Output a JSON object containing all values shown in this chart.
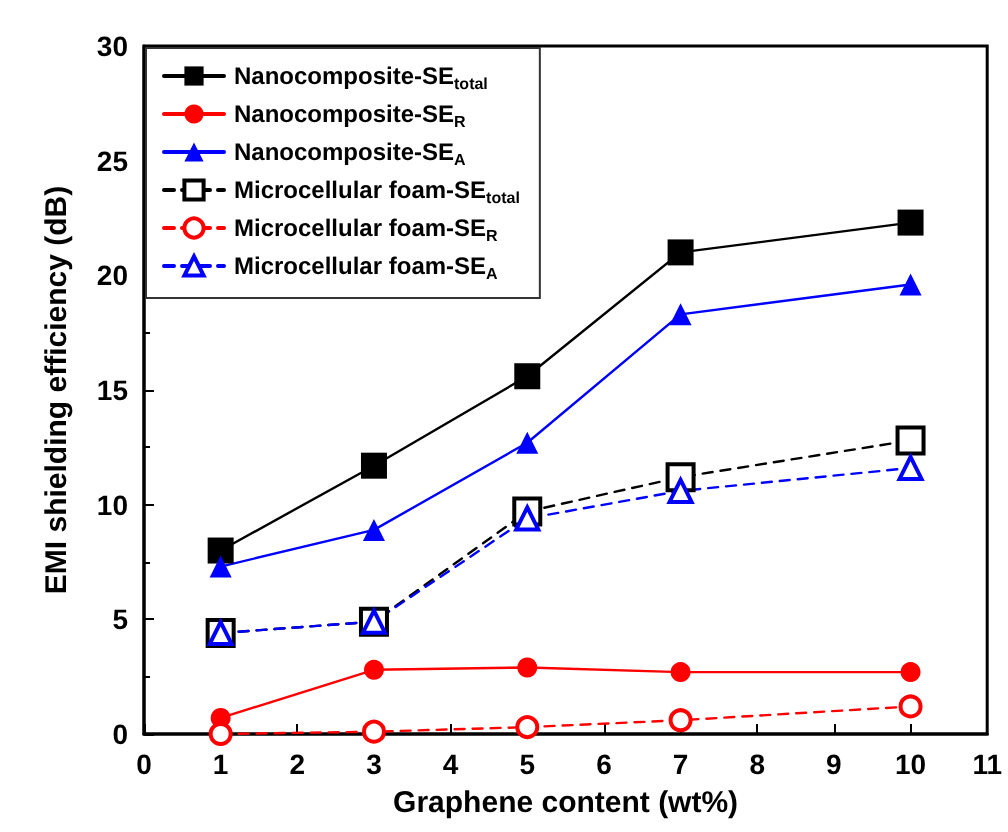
{
  "chart_data": {
    "type": "line",
    "xlabel": "Graphene content (wt%)",
    "ylabel": "EMI shielding efficiency (dB)",
    "x": [
      1,
      3,
      5,
      7,
      10
    ],
    "xlim": [
      0,
      11
    ],
    "xticks": [
      0,
      1,
      2,
      3,
      4,
      5,
      6,
      7,
      8,
      9,
      10,
      11
    ],
    "ylim": [
      0,
      30
    ],
    "yticks": [
      0,
      5,
      10,
      15,
      20,
      25,
      30
    ],
    "grid": false,
    "legend": "top left",
    "series": [
      {
        "name": "Nanocomposite-SE$_{total}$",
        "color": "#000000",
        "marker": "square",
        "line_style": "solid",
        "values": [
          8.0,
          11.7,
          15.6,
          21.0,
          22.3
        ]
      },
      {
        "name": "Nanocomposite-SE$_{R}$",
        "color": "#ff0000",
        "marker": "circle",
        "line_style": "solid",
        "values": [
          0.7,
          2.8,
          2.9,
          2.7,
          2.7
        ]
      },
      {
        "name": "Nanocomposite-SE$_{A}$",
        "color": "#0000ff",
        "marker": "triangle",
        "line_style": "solid",
        "values": [
          7.3,
          8.9,
          12.7,
          18.3,
          19.6
        ]
      },
      {
        "name": "Microcellular foam-SE$_{total}$",
        "color": "#000000",
        "marker": "square",
        "line_style": "dashed",
        "values": [
          4.4,
          4.9,
          9.7,
          11.2,
          12.8
        ]
      },
      {
        "name": "Microcellular foam-SE$_{R}$",
        "color": "#ff0000",
        "marker": "circle",
        "line_style": "dashed",
        "values": [
          0.0,
          0.1,
          0.3,
          0.6,
          1.2
        ]
      },
      {
        "name": "Microcellular foam-SE$_{A}$",
        "color": "#0000ff",
        "marker": "triangle",
        "line_style": "dashed",
        "values": [
          4.4,
          4.9,
          9.4,
          10.6,
          11.6
        ]
      }
    ]
  }
}
